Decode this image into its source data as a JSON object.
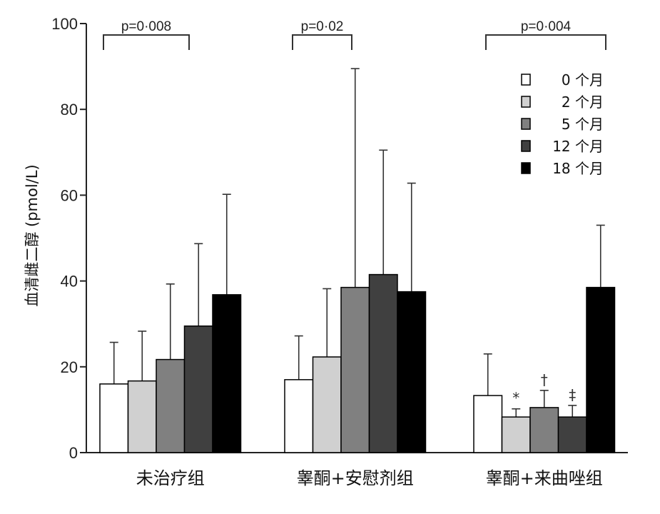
{
  "chart_data": {
    "type": "bar",
    "title": "",
    "xlabel": "",
    "ylabel": "血清雌二醇 (pmol/L)",
    "ylim": [
      0,
      100
    ],
    "yticks": [
      0,
      20,
      40,
      60,
      80,
      100
    ],
    "ytick_labels": [
      "0",
      "20",
      "40",
      "60",
      "80",
      "100"
    ],
    "grid": false,
    "legend_position": "top-right",
    "categories": [
      "未治疗组",
      "睾酮+安慰剂组",
      "睾酮+来曲唑组"
    ],
    "series": [
      {
        "name": "0 个月",
        "color": "#ffffff",
        "values": [
          16,
          17,
          13.3
        ],
        "errors": [
          25.7,
          27.2,
          23
        ]
      },
      {
        "name": "2 个月",
        "color": "#d0d0d0",
        "values": [
          16.7,
          22.3,
          8.3
        ],
        "errors": [
          28.3,
          38.2,
          10.2
        ]
      },
      {
        "name": "5 个月",
        "color": "#808080",
        "values": [
          21.7,
          38.5,
          10.5
        ],
        "errors": [
          39.3,
          89.5,
          14.5
        ]
      },
      {
        "name": "12 个月",
        "color": "#404040",
        "values": [
          29.5,
          41.5,
          8.3
        ],
        "errors": [
          48.7,
          70.5,
          11
        ]
      },
      {
        "name": "18 个月",
        "color": "#000000",
        "values": [
          36.8,
          37.5,
          38.5
        ],
        "errors": [
          60.2,
          62.8,
          53
        ]
      }
    ],
    "annotations": {
      "significance": [
        {
          "label": "p=0·008",
          "category": 0
        },
        {
          "label": "p=0·02",
          "category": 1
        },
        {
          "label": "p=0·004",
          "category": 2
        }
      ],
      "markers": [
        {
          "symbol": "*",
          "category": 2,
          "series": 1
        },
        {
          "symbol": "†",
          "category": 2,
          "series": 2
        },
        {
          "symbol": "‡",
          "category": 2,
          "series": 3
        }
      ]
    }
  }
}
